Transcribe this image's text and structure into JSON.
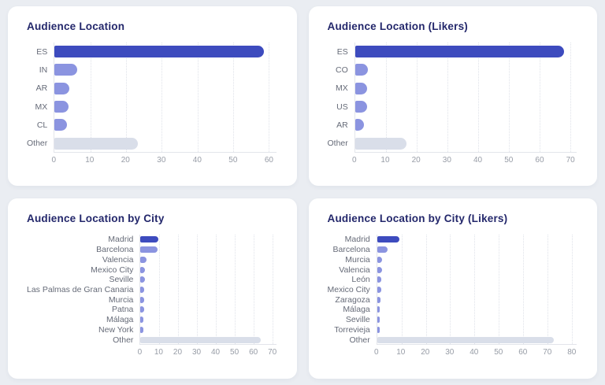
{
  "page_background": "#eaedf2",
  "palette": {
    "primary": "#3d4bbe",
    "secondary": "#8b94e0",
    "muted": "#d9dee9",
    "title_color": "#23276b",
    "label_color": "#666b78",
    "tick_color": "#979ca6",
    "axis_line_color": "#e3e5eb",
    "gridline_color": "#dfe2e9",
    "card_background": "#ffffff"
  },
  "chart_data": [
    {
      "type": "bar",
      "orientation": "horizontal",
      "title": "Audience Location",
      "categories": [
        "ES",
        "IN",
        "AR",
        "MX",
        "CL",
        "Other"
      ],
      "values": [
        58.5,
        6.3,
        4.2,
        4.0,
        3.5,
        23.2
      ],
      "xticks": [
        0,
        10,
        20,
        30,
        40,
        50,
        60
      ],
      "xlim": [
        0,
        62
      ],
      "xlabel": "",
      "ylabel": "",
      "grid": "vertical-dotted",
      "legend": false,
      "bar_color_roles": [
        "primary",
        "secondary",
        "secondary",
        "secondary",
        "secondary",
        "muted"
      ]
    },
    {
      "type": "bar",
      "orientation": "horizontal",
      "title": "Audience Location (Likers)",
      "categories": [
        "ES",
        "CO",
        "MX",
        "US",
        "AR",
        "Other"
      ],
      "values": [
        68.0,
        4.1,
        4.0,
        3.9,
        2.8,
        16.6
      ],
      "xticks": [
        0,
        10,
        20,
        30,
        40,
        50,
        60,
        70
      ],
      "xlim": [
        0,
        72
      ],
      "xlabel": "",
      "ylabel": "",
      "grid": "vertical-dotted",
      "legend": false,
      "bar_color_roles": [
        "primary",
        "secondary",
        "secondary",
        "secondary",
        "secondary",
        "muted"
      ]
    },
    {
      "type": "bar",
      "orientation": "horizontal",
      "title": "Audience Location by City",
      "categories": [
        "Madrid",
        "Barcelona",
        "Valencia",
        "Mexico City",
        "Seville",
        "Las Palmas de Gran Canaria",
        "Murcia",
        "Patna",
        "Málaga",
        "New York",
        "Other"
      ],
      "values": [
        9.5,
        9.0,
        3.0,
        2.5,
        2.5,
        2.0,
        2.0,
        2.0,
        1.5,
        1.5,
        64.0
      ],
      "xticks": [
        0,
        10,
        20,
        30,
        40,
        50,
        60,
        70
      ],
      "xlim": [
        0,
        72
      ],
      "xlabel": "",
      "ylabel": "",
      "grid": "vertical-dotted",
      "legend": false,
      "bar_color_roles": [
        "primary",
        "secondary",
        "secondary",
        "secondary",
        "secondary",
        "secondary",
        "secondary",
        "secondary",
        "secondary",
        "secondary",
        "muted"
      ]
    },
    {
      "type": "bar",
      "orientation": "horizontal",
      "title": "Audience Location by City (Likers)",
      "categories": [
        "Madrid",
        "Barcelona",
        "Murcia",
        "Valencia",
        "León",
        "Mexico City",
        "Zaragoza",
        "Málaga",
        "Seville",
        "Torrevieja",
        "Other"
      ],
      "values": [
        9.0,
        4.4,
        2.1,
        2.1,
        1.6,
        1.6,
        1.5,
        1.2,
        1.2,
        1.1,
        72.5
      ],
      "xticks": [
        0,
        10,
        20,
        30,
        40,
        50,
        60,
        70,
        80
      ],
      "xlim": [
        0,
        82
      ],
      "xlabel": "",
      "ylabel": "",
      "grid": "vertical-dotted",
      "legend": false,
      "bar_color_roles": [
        "primary",
        "secondary",
        "secondary",
        "secondary",
        "secondary",
        "secondary",
        "secondary",
        "secondary",
        "secondary",
        "secondary",
        "muted"
      ]
    }
  ]
}
